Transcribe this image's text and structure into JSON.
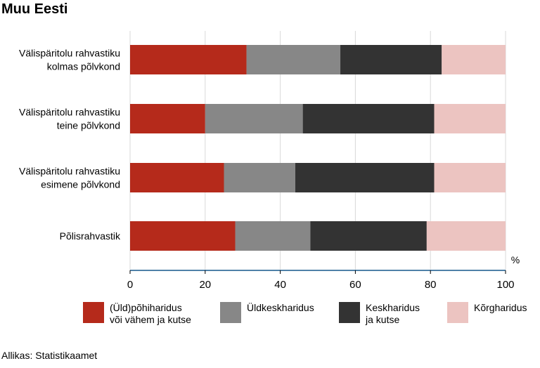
{
  "title": "Muu Eesti",
  "source": "Allikas: Statistikaamet",
  "chart_data": {
    "type": "bar",
    "orientation": "horizontal",
    "stacked": true,
    "title": "Muu Eesti",
    "categories": [
      [
        "Välispäritolu rahvastiku",
        "kolmas põlvkond"
      ],
      [
        "Välispäritolu rahvastiku",
        "teine põlvkond"
      ],
      [
        "Välispäritolu rahvastiku",
        "esimene põlvkond"
      ],
      [
        "Põlisrahvastik"
      ]
    ],
    "series": [
      {
        "name": "(Üld)põhiharidus\nvõi vähem ja kutse",
        "color": "#b52a1b",
        "values": [
          31,
          20,
          25,
          28
        ]
      },
      {
        "name": "Üldkeskharidus",
        "color": "#878787",
        "values": [
          25,
          26,
          19,
          20
        ]
      },
      {
        "name": "Keskharidus\nja kutse",
        "color": "#333333",
        "values": [
          27,
          35,
          37,
          31
        ]
      },
      {
        "name": "Kõrgharidus",
        "color": "#ecc4c1",
        "values": [
          17,
          19,
          19,
          21
        ]
      }
    ],
    "xlim": [
      0,
      100
    ],
    "xticks": [
      0,
      20,
      40,
      60,
      80,
      100
    ],
    "unit_label": "%",
    "grid": "vertical",
    "legend_position": "bottom"
  }
}
